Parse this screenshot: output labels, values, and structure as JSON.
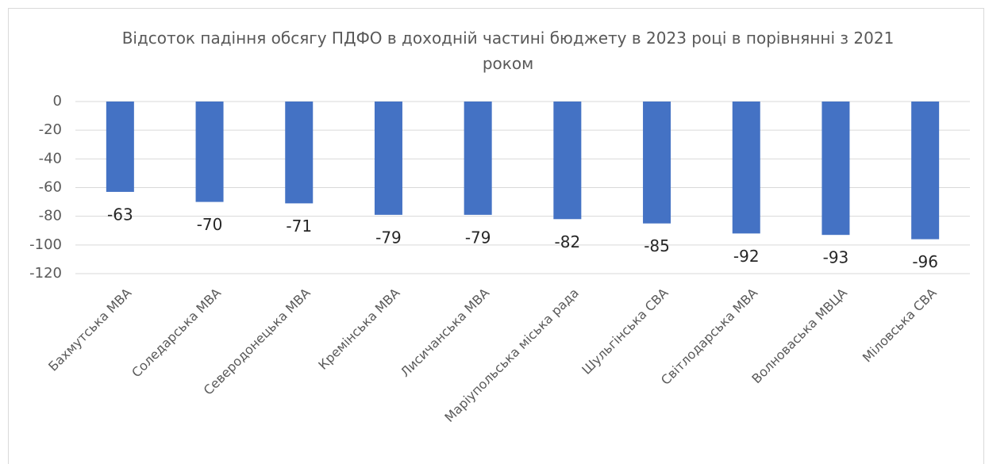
{
  "chart_data": {
    "type": "bar",
    "title": "Відсоток падіння обсягу ПДФО в доходній частині бюджету в 2023 році в порівнянні з 2021 роком",
    "categories": [
      "Бахмутська МВА",
      "Соледарська МВА",
      "Северодонецька МВА",
      "Кремінська МВА",
      "Лисичанська МВА",
      "Маріупольська міська рада",
      "Шульгінська СВА",
      "Світлодарська МВА",
      "Волноваська МВЦА",
      "Міловська СВА"
    ],
    "values": [
      -63,
      -70,
      -71,
      -79,
      -79,
      -82,
      -85,
      -92,
      -93,
      -96
    ],
    "color": "#4472c4",
    "ylim": [
      -120,
      0
    ],
    "yticks": [
      0,
      -20,
      -40,
      -60,
      -80,
      -100,
      -120
    ],
    "grid": true
  }
}
